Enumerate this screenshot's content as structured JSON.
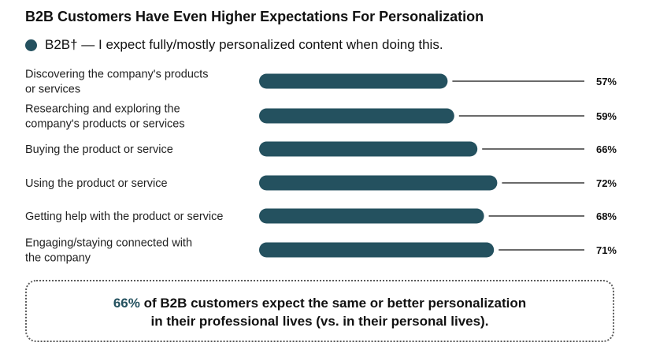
{
  "title": "B2B Customers Have Even Higher Expectations For Personalization",
  "legend": {
    "text": "B2B† — I expect fully/mostly personalized content when doing this."
  },
  "chart_data": {
    "type": "bar",
    "orientation": "horizontal",
    "title": "B2B Customers Have Even Higher Expectations For Personalization",
    "xlim": [
      0,
      100
    ],
    "categories": [
      [
        "Discovering the company's products",
        "or services"
      ],
      [
        "Researching and exploring the",
        "company's products or services"
      ],
      [
        "Buying the product or service"
      ],
      [
        "Using the product or service"
      ],
      [
        "Getting help with the product or service"
      ],
      [
        "Engaging/staying connected with",
        "the company"
      ]
    ],
    "series": [
      {
        "name": "B2B† — I expect fully/mostly personalized content when doing this.",
        "values": [
          57,
          59,
          66,
          72,
          68,
          71
        ],
        "labels": [
          "57%",
          "59%",
          "66%",
          "72%",
          "68%",
          "71%"
        ]
      }
    ],
    "color": "#24515f",
    "leader_color": "#111111"
  },
  "callout": {
    "highlight": "66%",
    "line1_rest": " of B2B customers expect the same or better personalization",
    "line2": "in their professional lives (vs. in their personal lives)."
  }
}
